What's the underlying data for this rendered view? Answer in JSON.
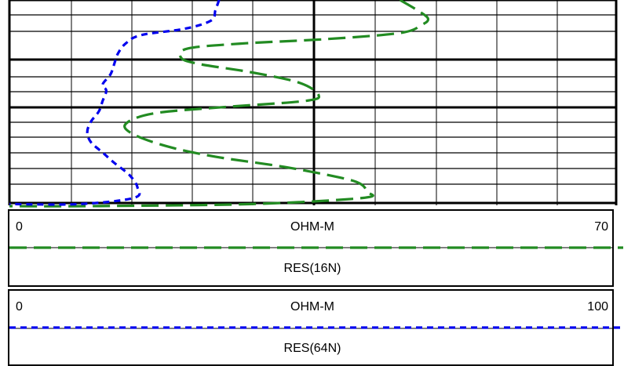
{
  "chart_data": {
    "type": "line",
    "grid": true,
    "tracks": [
      {
        "name": "RES(16N)",
        "unit": "OHM-M",
        "min": 0,
        "max": 70,
        "color": "#228B22",
        "line_style": "long-dash",
        "samples": [
          {
            "value": 44.6,
            "depth": 0.0
          },
          {
            "value": 46.6,
            "depth": 0.05
          },
          {
            "value": 47.8,
            "depth": 0.09
          },
          {
            "value": 47.1,
            "depth": 0.12
          },
          {
            "value": 44.6,
            "depth": 0.16
          },
          {
            "value": 36.0,
            "depth": 0.19
          },
          {
            "value": 27.0,
            "depth": 0.21
          },
          {
            "value": 20.4,
            "depth": 0.235
          },
          {
            "value": 19.6,
            "depth": 0.28
          },
          {
            "value": 21.6,
            "depth": 0.31
          },
          {
            "value": 27.5,
            "depth": 0.35
          },
          {
            "value": 33.0,
            "depth": 0.4
          },
          {
            "value": 35.3,
            "depth": 0.46
          },
          {
            "value": 33.7,
            "depth": 0.49
          },
          {
            "value": 24.3,
            "depth": 0.52
          },
          {
            "value": 16.5,
            "depth": 0.55
          },
          {
            "value": 13.3,
            "depth": 0.6
          },
          {
            "value": 14.1,
            "depth": 0.65
          },
          {
            "value": 18.0,
            "depth": 0.71
          },
          {
            "value": 23.5,
            "depth": 0.76
          },
          {
            "value": 31.4,
            "depth": 0.81
          },
          {
            "value": 37.6,
            "depth": 0.86
          },
          {
            "value": 40.0,
            "depth": 0.89
          },
          {
            "value": 40.8,
            "depth": 0.93
          },
          {
            "value": 40.4,
            "depth": 0.96
          },
          {
            "value": 27.5,
            "depth": 0.99
          },
          {
            "value": 8.6,
            "depth": 1.0
          },
          {
            "value": 0.0,
            "depth": 1.0
          }
        ]
      },
      {
        "name": "RES(64N)",
        "unit": "OHM-M",
        "min": 0,
        "max": 100,
        "color": "#0000EE",
        "line_style": "short-dash",
        "samples": [
          {
            "value": 34.2,
            "depth": 0.0
          },
          {
            "value": 33.6,
            "depth": 0.05
          },
          {
            "value": 32.9,
            "depth": 0.1
          },
          {
            "value": 28.5,
            "depth": 0.14
          },
          {
            "value": 21.5,
            "depth": 0.17
          },
          {
            "value": 19.0,
            "depth": 0.21
          },
          {
            "value": 17.7,
            "depth": 0.26
          },
          {
            "value": 17.1,
            "depth": 0.31
          },
          {
            "value": 16.5,
            "depth": 0.36
          },
          {
            "value": 15.2,
            "depth": 0.41
          },
          {
            "value": 15.8,
            "depth": 0.44
          },
          {
            "value": 15.2,
            "depth": 0.49
          },
          {
            "value": 14.6,
            "depth": 0.54
          },
          {
            "value": 13.3,
            "depth": 0.59
          },
          {
            "value": 12.7,
            "depth": 0.64
          },
          {
            "value": 13.3,
            "depth": 0.69
          },
          {
            "value": 15.2,
            "depth": 0.74
          },
          {
            "value": 17.1,
            "depth": 0.79
          },
          {
            "value": 19.6,
            "depth": 0.85
          },
          {
            "value": 20.9,
            "depth": 0.91
          },
          {
            "value": 20.3,
            "depth": 0.96
          },
          {
            "value": 11.4,
            "depth": 0.99
          },
          {
            "value": 0.0,
            "depth": 0.99
          }
        ]
      }
    ]
  }
}
